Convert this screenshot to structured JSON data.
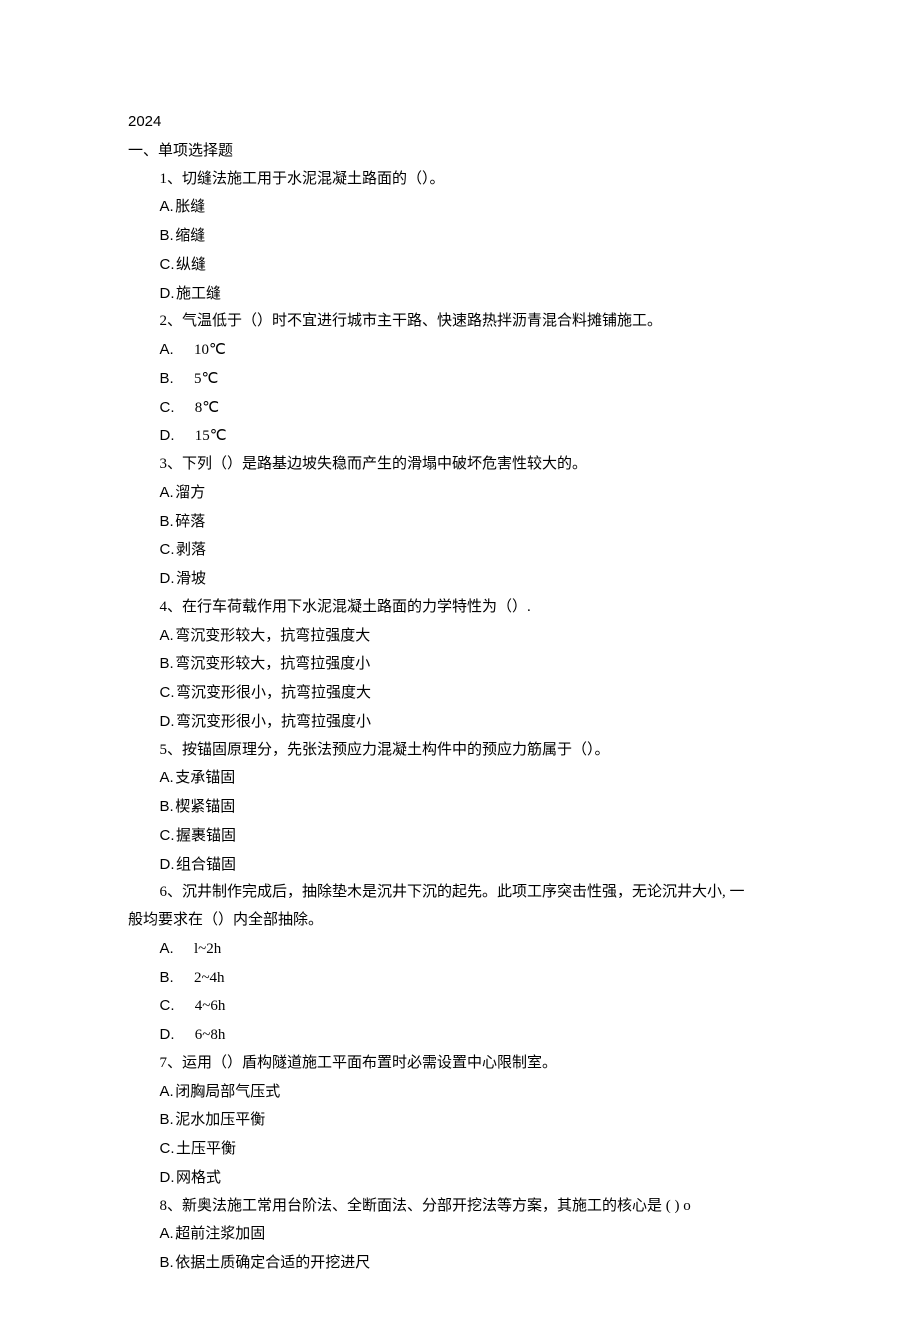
{
  "year": "2024",
  "section_heading": "一、单项选择题",
  "questions": [
    {
      "text": "1、切缝法施工用于水泥混凝土路面的（）。",
      "options": [
        {
          "letter": "A.",
          "text": "胀缝",
          "gap": "narrow"
        },
        {
          "letter": "B.",
          "text": "缩缝",
          "gap": "narrow"
        },
        {
          "letter": "C.",
          "text": "纵缝",
          "gap": "narrow"
        },
        {
          "letter": "D.",
          "text": "施工缝",
          "gap": "narrow"
        }
      ]
    },
    {
      "text": "2、气温低于（）时不宜进行城市主干路、快速路热拌沥青混合料摊铺施工。",
      "options": [
        {
          "letter": "A.",
          "text": "10℃",
          "gap": "wide"
        },
        {
          "letter": "B.",
          "text": "5℃",
          "gap": "wide"
        },
        {
          "letter": "C.",
          "text": "8℃",
          "gap": "wide"
        },
        {
          "letter": "D.",
          "text": "15℃",
          "gap": "wide"
        }
      ]
    },
    {
      "text": "3、下列（）是路基边坡失稳而产生的滑塌中破坏危害性较大的。",
      "options": [
        {
          "letter": "A.",
          "text": "溜方",
          "gap": "narrow"
        },
        {
          "letter": "B.",
          "text": "碎落",
          "gap": "narrow"
        },
        {
          "letter": "C.",
          "text": "剥落",
          "gap": "narrow"
        },
        {
          "letter": "D.",
          "text": "滑坡",
          "gap": "narrow"
        }
      ]
    },
    {
      "text": "4、在行车荷载作用下水泥混凝土路面的力学特性为（）.",
      "options": [
        {
          "letter": "A.",
          "text": "弯沉变形较大，抗弯拉强度大",
          "gap": "narrow"
        },
        {
          "letter": "B.",
          "text": "弯沉变形较大，抗弯拉强度小",
          "gap": "narrow"
        },
        {
          "letter": "C.",
          "text": "弯沉变形很小，抗弯拉强度大",
          "gap": "narrow"
        },
        {
          "letter": "D.",
          "text": "弯沉变形很小，抗弯拉强度小",
          "gap": "narrow"
        }
      ]
    },
    {
      "text": "5、按锚固原理分，先张法预应力混凝土构件中的预应力筋属于（）。",
      "options": [
        {
          "letter": "A.",
          "text": "支承锚固",
          "gap": "narrow"
        },
        {
          "letter": "B.",
          "text": "楔紧锚固",
          "gap": "narrow"
        },
        {
          "letter": "C.",
          "text": "握裹锚固",
          "gap": "narrow"
        },
        {
          "letter": "D.",
          "text": "组合锚固",
          "gap": "narrow"
        }
      ]
    },
    {
      "text": "6、沉井制作完成后，抽除垫木是沉井下沉的起先。此项工序突击性强，无论沉井大小, 一",
      "continuation": "般均要求在（）内全部抽除。",
      "options": [
        {
          "letter": "A.",
          "text": "l~2h",
          "gap": "wide"
        },
        {
          "letter": "B.",
          "text": "2~4h",
          "gap": "wide"
        },
        {
          "letter": "C.",
          "text": "4~6h",
          "gap": "wide"
        },
        {
          "letter": "D.",
          "text": "6~8h",
          "gap": "wide"
        }
      ]
    },
    {
      "text": "7、运用（）盾构隧道施工平面布置时必需设置中心限制室。",
      "options": [
        {
          "letter": "A.",
          "text": "闭胸局部气压式",
          "gap": "narrow"
        },
        {
          "letter": "B.",
          "text": "泥水加压平衡",
          "gap": "narrow"
        },
        {
          "letter": "C.",
          "text": "土压平衡",
          "gap": "narrow"
        },
        {
          "letter": "D.",
          "text": "网格式",
          "gap": "narrow"
        }
      ]
    },
    {
      "text": "8、新奥法施工常用台阶法、全断面法、分部开挖法等方案，其施工的核心是 ( ) o",
      "options": [
        {
          "letter": "A.",
          "text": "超前注浆加固",
          "gap": "narrow"
        },
        {
          "letter": "B.",
          "text": "依据土质确定合适的开挖进尺",
          "gap": "narrow"
        }
      ]
    }
  ]
}
